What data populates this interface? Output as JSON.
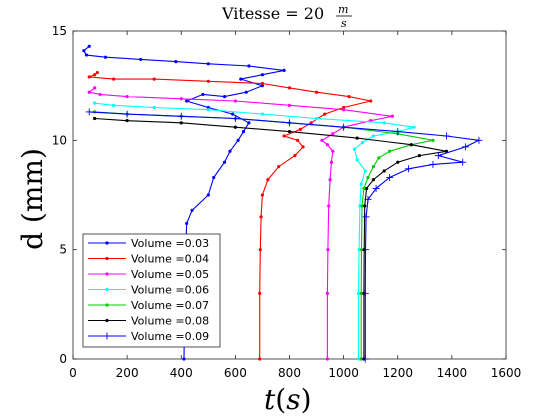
{
  "chart_data": {
    "type": "line",
    "title": {
      "prefix": "Vitesse = 20",
      "num": "m",
      "den": "s"
    },
    "xlabel": {
      "main": "t",
      "open": "(",
      "var": "s",
      "close": ")"
    },
    "ylabel": "d (mm)",
    "xlim": [
      0,
      1600
    ],
    "ylim": [
      0,
      15
    ],
    "xticks": [
      0,
      200,
      400,
      600,
      800,
      1000,
      1200,
      1400,
      1600
    ],
    "yticks": [
      0,
      5,
      10,
      15
    ],
    "grid": false,
    "legend_position": "bottom-left",
    "series": [
      {
        "name": "Volume =0.03",
        "color": "#0000ff",
        "marker": "dot",
        "points": [
          [
            410,
            0
          ],
          [
            412,
            2
          ],
          [
            415,
            4
          ],
          [
            418,
            5.5
          ],
          [
            420,
            6.2
          ],
          [
            440,
            6.8
          ],
          [
            500,
            7.5
          ],
          [
            520,
            8.3
          ],
          [
            560,
            9.0
          ],
          [
            580,
            9.5
          ],
          [
            610,
            10.0
          ],
          [
            630,
            10.4
          ],
          [
            650,
            10.8
          ],
          [
            590,
            11.2
          ],
          [
            500,
            11.5
          ],
          [
            420,
            11.8
          ],
          [
            480,
            12.1
          ],
          [
            560,
            12.0
          ],
          [
            640,
            12.2
          ],
          [
            700,
            12.5
          ],
          [
            620,
            12.8
          ],
          [
            700,
            13.0
          ],
          [
            780,
            13.2
          ],
          [
            650,
            13.4
          ],
          [
            500,
            13.5
          ],
          [
            380,
            13.6
          ],
          [
            250,
            13.7
          ],
          [
            120,
            13.8
          ],
          [
            50,
            13.9
          ],
          [
            40,
            14.1
          ],
          [
            60,
            14.3
          ]
        ]
      },
      {
        "name": "Volume =0.04",
        "color": "#ff0000",
        "marker": "dot",
        "points": [
          [
            690,
            0
          ],
          [
            690,
            3
          ],
          [
            692,
            5
          ],
          [
            695,
            6.5
          ],
          [
            700,
            7.5
          ],
          [
            720,
            8.2
          ],
          [
            760,
            8.8
          ],
          [
            820,
            9.3
          ],
          [
            850,
            9.7
          ],
          [
            830,
            10.0
          ],
          [
            780,
            10.2
          ],
          [
            840,
            10.5
          ],
          [
            880,
            10.8
          ],
          [
            930,
            11.2
          ],
          [
            1000,
            11.5
          ],
          [
            1100,
            11.8
          ],
          [
            1020,
            12.0
          ],
          [
            900,
            12.2
          ],
          [
            800,
            12.4
          ],
          [
            700,
            12.6
          ],
          [
            500,
            12.7
          ],
          [
            300,
            12.8
          ],
          [
            150,
            12.8
          ],
          [
            60,
            12.9
          ],
          [
            80,
            13.0
          ],
          [
            90,
            13.1
          ]
        ]
      },
      {
        "name": "Volume =0.05",
        "color": "#ff00ff",
        "marker": "dot",
        "points": [
          [
            940,
            0
          ],
          [
            940,
            3
          ],
          [
            942,
            5
          ],
          [
            945,
            7
          ],
          [
            950,
            8.2
          ],
          [
            955,
            9.0
          ],
          [
            960,
            9.5
          ],
          [
            940,
            9.8
          ],
          [
            920,
            10.0
          ],
          [
            960,
            10.3
          ],
          [
            1000,
            10.6
          ],
          [
            1100,
            10.9
          ],
          [
            1180,
            11.1
          ],
          [
            1000,
            11.4
          ],
          [
            800,
            11.6
          ],
          [
            600,
            11.8
          ],
          [
            400,
            11.9
          ],
          [
            200,
            12.0
          ],
          [
            100,
            12.1
          ],
          [
            60,
            12.2
          ],
          [
            80,
            12.4
          ]
        ]
      },
      {
        "name": "Volume =0.06",
        "color": "#00ffff",
        "marker": "dot",
        "points": [
          [
            1055,
            0
          ],
          [
            1055,
            3
          ],
          [
            1057,
            5
          ],
          [
            1060,
            7
          ],
          [
            1065,
            8.0
          ],
          [
            1080,
            8.6
          ],
          [
            1050,
            9.1
          ],
          [
            1040,
            9.6
          ],
          [
            1070,
            9.9
          ],
          [
            1110,
            10.2
          ],
          [
            1200,
            10.4
          ],
          [
            1260,
            10.6
          ],
          [
            1150,
            10.8
          ],
          [
            900,
            11.0
          ],
          [
            700,
            11.2
          ],
          [
            500,
            11.4
          ],
          [
            300,
            11.5
          ],
          [
            150,
            11.6
          ],
          [
            80,
            11.7
          ]
        ]
      },
      {
        "name": "Volume =0.07",
        "color": "#00cc00",
        "marker": "dot",
        "points": [
          [
            1065,
            0
          ],
          [
            1065,
            3
          ],
          [
            1066,
            5
          ],
          [
            1068,
            7
          ],
          [
            1075,
            7.8
          ],
          [
            1090,
            8.3
          ],
          [
            1110,
            8.8
          ],
          [
            1130,
            9.2
          ],
          [
            1170,
            9.5
          ],
          [
            1250,
            9.8
          ],
          [
            1330,
            10.0
          ],
          [
            1200,
            10.3
          ],
          [
            1000,
            10.6
          ],
          [
            800,
            10.8
          ],
          [
            600,
            11.0
          ],
          [
            400,
            11.1
          ],
          [
            200,
            11.2
          ],
          [
            80,
            11.3
          ]
        ]
      },
      {
        "name": "Volume =0.08",
        "color": "#000000",
        "marker": "dot",
        "points": [
          [
            1075,
            0
          ],
          [
            1075,
            3
          ],
          [
            1076,
            5
          ],
          [
            1078,
            7
          ],
          [
            1085,
            7.8
          ],
          [
            1110,
            8.2
          ],
          [
            1150,
            8.6
          ],
          [
            1200,
            9.0
          ],
          [
            1280,
            9.3
          ],
          [
            1380,
            9.5
          ],
          [
            1250,
            9.8
          ],
          [
            1050,
            10.1
          ],
          [
            800,
            10.4
          ],
          [
            600,
            10.6
          ],
          [
            400,
            10.8
          ],
          [
            200,
            10.9
          ],
          [
            80,
            11.0
          ]
        ]
      },
      {
        "name": "Volume =0.09",
        "color": "#0000ff",
        "marker": "plus",
        "points": [
          [
            1080,
            0
          ],
          [
            1080,
            3
          ],
          [
            1081,
            5
          ],
          [
            1083,
            6.5
          ],
          [
            1090,
            7.3
          ],
          [
            1120,
            7.8
          ],
          [
            1170,
            8.3
          ],
          [
            1240,
            8.7
          ],
          [
            1330,
            8.9
          ],
          [
            1440,
            9.0
          ],
          [
            1350,
            9.3
          ],
          [
            1450,
            9.7
          ],
          [
            1500,
            10.0
          ],
          [
            1380,
            10.2
          ],
          [
            1200,
            10.4
          ],
          [
            1000,
            10.6
          ],
          [
            800,
            10.8
          ],
          [
            600,
            11.0
          ],
          [
            400,
            11.1
          ],
          [
            200,
            11.2
          ],
          [
            60,
            11.3
          ]
        ]
      }
    ]
  }
}
